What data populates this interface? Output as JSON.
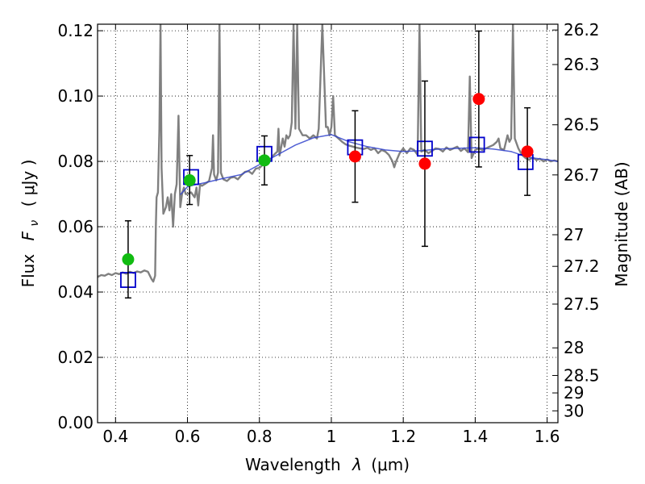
{
  "chart_data": {
    "type": "scatter",
    "xlabel": "Wavelength",
    "xlabel_symbol": "λ",
    "xlabel_unit": "(μm)",
    "ylabel": "Flux",
    "ylabel_symbol": "F",
    "ylabel_subscript": "ν",
    "ylabel_unit": "( μJy )",
    "y2label": "Magnitude (AB)",
    "xlim": [
      0.35,
      1.63
    ],
    "ylim": [
      0.0,
      0.122
    ],
    "grid": true,
    "x_ticks": [
      0.4,
      0.6,
      0.8,
      1.0,
      1.2,
      1.4,
      1.6
    ],
    "x_tick_labels": [
      "0.4",
      "0.6",
      "0.8",
      "1",
      "1.2",
      "1.4",
      "1.6"
    ],
    "y_ticks": [
      0.0,
      0.02,
      0.04,
      0.06,
      0.08,
      0.1,
      0.12
    ],
    "y_tick_labels": [
      "0.00",
      "0.02",
      "0.04",
      "0.06",
      "0.08",
      "0.10",
      "0.12"
    ],
    "mag_ticks": [
      {
        "mag": 26.2,
        "label": "26.2"
      },
      {
        "mag": 26.3,
        "label": "26.3"
      },
      {
        "mag": 26.5,
        "label": "26.5"
      },
      {
        "mag": 26.7,
        "label": "26.7"
      },
      {
        "mag": 27.0,
        "label": "27"
      },
      {
        "mag": 27.2,
        "label": "27.2"
      },
      {
        "mag": 27.5,
        "label": "27.5"
      },
      {
        "mag": 28.0,
        "label": "28"
      },
      {
        "mag": 28.5,
        "label": "28.5"
      },
      {
        "mag": 29.0,
        "label": "29"
      },
      {
        "mag": 30.0,
        "label": "30"
      }
    ],
    "series": [
      {
        "kind": "observed-green",
        "color": "#11bb11",
        "points": [
          {
            "x": 0.435,
            "y": 0.05,
            "yerr_lo": 0.0382,
            "yerr_hi": 0.0618
          },
          {
            "x": 0.606,
            "y": 0.0742,
            "yerr_lo": 0.0668,
            "yerr_hi": 0.0818
          },
          {
            "x": 0.814,
            "y": 0.0803,
            "yerr_lo": 0.0728,
            "yerr_hi": 0.0878
          }
        ]
      },
      {
        "kind": "observed-red",
        "color": "#ff0000",
        "points": [
          {
            "x": 1.066,
            "y": 0.0815,
            "yerr_lo": 0.0675,
            "yerr_hi": 0.0955
          },
          {
            "x": 1.26,
            "y": 0.0793,
            "yerr_lo": 0.054,
            "yerr_hi": 0.1046
          },
          {
            "x": 1.41,
            "y": 0.0991,
            "yerr_lo": 0.0783,
            "yerr_hi": 0.1199
          },
          {
            "x": 1.545,
            "y": 0.083,
            "yerr_lo": 0.0696,
            "yerr_hi": 0.0964
          }
        ]
      },
      {
        "kind": "model-squares",
        "color": "#0000cc",
        "points": [
          {
            "x": 0.435,
            "y": 0.0437
          },
          {
            "x": 0.61,
            "y": 0.0752
          },
          {
            "x": 0.814,
            "y": 0.0823
          },
          {
            "x": 1.066,
            "y": 0.0843
          },
          {
            "x": 1.26,
            "y": 0.0839
          },
          {
            "x": 1.405,
            "y": 0.0851
          },
          {
            "x": 1.54,
            "y": 0.0798
          }
        ]
      },
      {
        "kind": "sed-template",
        "color": "#808080",
        "points": [
          [
            0.35,
            0.0446
          ],
          [
            0.36,
            0.0452
          ],
          [
            0.37,
            0.045
          ],
          [
            0.38,
            0.0456
          ],
          [
            0.39,
            0.0452
          ],
          [
            0.4,
            0.0458
          ],
          [
            0.41,
            0.0455
          ],
          [
            0.42,
            0.046
          ],
          [
            0.43,
            0.0456
          ],
          [
            0.44,
            0.0462
          ],
          [
            0.45,
            0.0458
          ],
          [
            0.46,
            0.0463
          ],
          [
            0.47,
            0.046
          ],
          [
            0.48,
            0.0466
          ],
          [
            0.49,
            0.0462
          ],
          [
            0.5,
            0.044
          ],
          [
            0.505,
            0.0432
          ],
          [
            0.51,
            0.045
          ],
          [
            0.512,
            0.06
          ],
          [
            0.514,
            0.069
          ],
          [
            0.518,
            0.0705
          ],
          [
            0.522,
            0.09
          ],
          [
            0.525,
            0.122
          ],
          [
            0.528,
            0.078
          ],
          [
            0.533,
            0.064
          ],
          [
            0.54,
            0.066
          ],
          [
            0.545,
            0.069
          ],
          [
            0.55,
            0.065
          ],
          [
            0.555,
            0.07
          ],
          [
            0.56,
            0.06
          ],
          [
            0.565,
            0.07
          ],
          [
            0.57,
            0.073
          ],
          [
            0.575,
            0.094
          ],
          [
            0.58,
            0.066
          ],
          [
            0.585,
            0.07
          ],
          [
            0.59,
            0.072
          ],
          [
            0.595,
            0.07
          ],
          [
            0.6,
            0.07
          ],
          [
            0.61,
            0.0705
          ],
          [
            0.62,
            0.069
          ],
          [
            0.625,
            0.072
          ],
          [
            0.63,
            0.0665
          ],
          [
            0.635,
            0.073
          ],
          [
            0.64,
            0.0725
          ],
          [
            0.65,
            0.0732
          ],
          [
            0.66,
            0.074
          ],
          [
            0.668,
            0.078
          ],
          [
            0.671,
            0.088
          ],
          [
            0.674,
            0.076
          ],
          [
            0.68,
            0.0742
          ],
          [
            0.685,
            0.0765
          ],
          [
            0.689,
            0.122
          ],
          [
            0.693,
            0.0765
          ],
          [
            0.7,
            0.0745
          ],
          [
            0.71,
            0.074
          ],
          [
            0.72,
            0.075
          ],
          [
            0.73,
            0.0752
          ],
          [
            0.74,
            0.0745
          ],
          [
            0.75,
            0.0758
          ],
          [
            0.76,
            0.0768
          ],
          [
            0.77,
            0.077
          ],
          [
            0.78,
            0.0762
          ],
          [
            0.79,
            0.0778
          ],
          [
            0.8,
            0.078
          ],
          [
            0.81,
            0.079
          ],
          [
            0.82,
            0.0795
          ],
          [
            0.83,
            0.0805
          ],
          [
            0.84,
            0.082
          ],
          [
            0.85,
            0.083
          ],
          [
            0.853,
            0.09
          ],
          [
            0.856,
            0.0818
          ],
          [
            0.86,
            0.084
          ],
          [
            0.865,
            0.087
          ],
          [
            0.87,
            0.0845
          ],
          [
            0.875,
            0.088
          ],
          [
            0.88,
            0.087
          ],
          [
            0.885,
            0.088
          ],
          [
            0.89,
            0.092
          ],
          [
            0.895,
            0.122
          ],
          [
            0.9,
            0.09
          ],
          [
            0.905,
            0.122
          ],
          [
            0.91,
            0.09
          ],
          [
            0.92,
            0.088
          ],
          [
            0.93,
            0.088
          ],
          [
            0.94,
            0.087
          ],
          [
            0.95,
            0.088
          ],
          [
            0.96,
            0.087
          ],
          [
            0.965,
            0.09
          ],
          [
            0.975,
            0.122
          ],
          [
            0.985,
            0.0905
          ],
          [
            0.99,
            0.0905
          ],
          [
            0.995,
            0.088
          ],
          [
            1.0,
            0.0905
          ],
          [
            1.005,
            0.1
          ],
          [
            1.01,
            0.088
          ],
          [
            1.02,
            0.087
          ],
          [
            1.03,
            0.086
          ],
          [
            1.04,
            0.0852
          ],
          [
            1.05,
            0.0848
          ],
          [
            1.06,
            0.0845
          ],
          [
            1.07,
            0.0842
          ],
          [
            1.08,
            0.084
          ],
          [
            1.09,
            0.0838
          ],
          [
            1.1,
            0.0842
          ],
          [
            1.11,
            0.0835
          ],
          [
            1.12,
            0.084
          ],
          [
            1.13,
            0.0825
          ],
          [
            1.14,
            0.0835
          ],
          [
            1.15,
            0.083
          ],
          [
            1.16,
            0.082
          ],
          [
            1.17,
            0.08
          ],
          [
            1.175,
            0.0782
          ],
          [
            1.18,
            0.08
          ],
          [
            1.19,
            0.0825
          ],
          [
            1.2,
            0.084
          ],
          [
            1.21,
            0.0825
          ],
          [
            1.22,
            0.084
          ],
          [
            1.23,
            0.0835
          ],
          [
            1.24,
            0.082
          ],
          [
            1.245,
            0.122
          ],
          [
            1.25,
            0.083
          ],
          [
            1.26,
            0.0835
          ],
          [
            1.27,
            0.0825
          ],
          [
            1.28,
            0.0832
          ],
          [
            1.29,
            0.084
          ],
          [
            1.3,
            0.0838
          ],
          [
            1.31,
            0.083
          ],
          [
            1.32,
            0.0843
          ],
          [
            1.33,
            0.0835
          ],
          [
            1.34,
            0.084
          ],
          [
            1.35,
            0.0845
          ],
          [
            1.36,
            0.0832
          ],
          [
            1.37,
            0.084
          ],
          [
            1.38,
            0.0828
          ],
          [
            1.385,
            0.106
          ],
          [
            1.39,
            0.081
          ],
          [
            1.4,
            0.0835
          ],
          [
            1.41,
            0.084
          ],
          [
            1.42,
            0.0835
          ],
          [
            1.43,
            0.084
          ],
          [
            1.44,
            0.0845
          ],
          [
            1.45,
            0.085
          ],
          [
            1.46,
            0.086
          ],
          [
            1.465,
            0.087
          ],
          [
            1.47,
            0.084
          ],
          [
            1.48,
            0.0835
          ],
          [
            1.49,
            0.088
          ],
          [
            1.495,
            0.086
          ],
          [
            1.5,
            0.087
          ],
          [
            1.505,
            0.122
          ],
          [
            1.51,
            0.087
          ],
          [
            1.52,
            0.084
          ],
          [
            1.53,
            0.082
          ],
          [
            1.54,
            0.081
          ],
          [
            1.55,
            0.0805
          ],
          [
            1.56,
            0.0812
          ],
          [
            1.57,
            0.0804
          ],
          [
            1.58,
            0.0808
          ],
          [
            1.59,
            0.08
          ],
          [
            1.6,
            0.0806
          ],
          [
            1.61,
            0.08
          ],
          [
            1.62,
            0.0803
          ],
          [
            1.63,
            0.08
          ]
        ]
      },
      {
        "kind": "model-curve",
        "color": "#3344cc",
        "points": [
          [
            0.58,
            0.0698
          ],
          [
            0.6,
            0.0722
          ],
          [
            0.62,
            0.0728
          ],
          [
            0.65,
            0.0735
          ],
          [
            0.7,
            0.0748
          ],
          [
            0.75,
            0.076
          ],
          [
            0.8,
            0.079
          ],
          [
            0.85,
            0.082
          ],
          [
            0.9,
            0.085
          ],
          [
            0.95,
            0.0872
          ],
          [
            1.0,
            0.0882
          ],
          [
            1.05,
            0.086
          ],
          [
            1.1,
            0.0845
          ],
          [
            1.15,
            0.0835
          ],
          [
            1.2,
            0.083
          ],
          [
            1.25,
            0.0833
          ],
          [
            1.3,
            0.0838
          ],
          [
            1.35,
            0.084
          ],
          [
            1.4,
            0.0842
          ],
          [
            1.45,
            0.0838
          ],
          [
            1.5,
            0.083
          ],
          [
            1.55,
            0.0812
          ],
          [
            1.6,
            0.0805
          ],
          [
            1.63,
            0.08
          ]
        ]
      }
    ]
  }
}
